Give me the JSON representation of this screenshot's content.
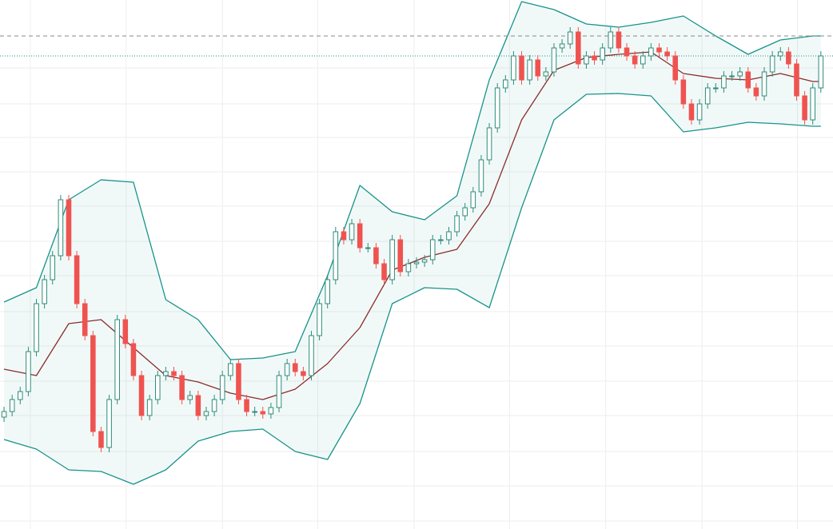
{
  "chart_data": {
    "type": "candlestick",
    "up_color": "#2e8b7a",
    "down_color": "#ef5350",
    "band_color": "#17938a",
    "middle_color": "#8b2c2c",
    "grid": true,
    "xlim": [
      -0.5,
      102.5
    ],
    "ylim": [
      0,
      662
    ],
    "xticks": [
      3.25,
      15.1,
      27,
      38.8,
      50.7,
      62.5,
      74.4,
      86.3,
      98.1
    ],
    "yticks": [
      10,
      54,
      97,
      142,
      185,
      229,
      272,
      317,
      360,
      404,
      447,
      490,
      532,
      577
    ],
    "open": [
      140,
      147,
      162,
      172,
      222,
      282,
      312,
      342,
      412,
      342,
      282,
      242,
      122,
      102,
      162,
      262,
      232,
      192,
      142,
      162,
      192,
      197,
      192,
      162,
      167,
      142,
      147,
      162,
      192,
      207,
      162,
      147,
      147,
      144,
      152,
      192,
      207,
      197,
      192,
      242,
      282,
      312,
      372,
      362,
      382,
      352,
      352,
      332,
      312,
      362,
      322,
      332,
      334,
      337,
      362,
      362,
      372,
      392,
      402,
      422,
      462,
      502,
      552,
      562,
      592,
      562,
      587,
      567,
      572,
      602,
      607,
      622,
      582,
      592,
      587,
      602,
      622,
      602,
      592,
      582,
      592,
      602,
      597,
      592,
      562,
      532,
      512,
      532,
      552,
      552,
      567,
      567,
      572,
      552,
      542,
      572,
      592,
      597,
      582,
      542,
      512,
      552
    ],
    "high": [
      153,
      168,
      178,
      228,
      288,
      318,
      348,
      418,
      418,
      348,
      288,
      248,
      128,
      168,
      268,
      268,
      238,
      198,
      168,
      198,
      203,
      203,
      198,
      173,
      173,
      153,
      168,
      198,
      213,
      213,
      168,
      153,
      153,
      158,
      198,
      213,
      213,
      203,
      248,
      288,
      318,
      378,
      378,
      388,
      388,
      358,
      358,
      338,
      368,
      368,
      338,
      340,
      343,
      368,
      368,
      378,
      398,
      408,
      428,
      468,
      508,
      558,
      568,
      598,
      598,
      593,
      593,
      578,
      608,
      613,
      628,
      628,
      598,
      598,
      608,
      628,
      628,
      608,
      598,
      598,
      608,
      608,
      603,
      598,
      568,
      538,
      538,
      558,
      558,
      573,
      573,
      578,
      578,
      558,
      578,
      598,
      603,
      603,
      588,
      548,
      558,
      598
    ],
    "low": [
      134,
      141,
      156,
      166,
      216,
      276,
      306,
      336,
      336,
      276,
      236,
      116,
      96,
      96,
      156,
      226,
      186,
      136,
      136,
      156,
      186,
      186,
      156,
      156,
      136,
      136,
      141,
      156,
      186,
      156,
      141,
      141,
      138,
      138,
      146,
      186,
      191,
      186,
      186,
      236,
      276,
      306,
      356,
      356,
      346,
      346,
      326,
      306,
      306,
      316,
      316,
      326,
      328,
      331,
      356,
      356,
      366,
      386,
      396,
      416,
      456,
      496,
      546,
      556,
      556,
      556,
      561,
      561,
      566,
      596,
      601,
      576,
      576,
      581,
      581,
      596,
      596,
      586,
      576,
      576,
      586,
      591,
      586,
      556,
      526,
      506,
      506,
      526,
      546,
      546,
      561,
      561,
      546,
      536,
      536,
      566,
      586,
      576,
      536,
      506,
      506,
      546
    ],
    "close": [
      147,
      162,
      172,
      222,
      282,
      312,
      342,
      412,
      342,
      282,
      242,
      122,
      102,
      162,
      262,
      232,
      192,
      142,
      162,
      192,
      197,
      192,
      162,
      167,
      142,
      147,
      162,
      192,
      207,
      162,
      147,
      147,
      144,
      152,
      192,
      207,
      197,
      192,
      242,
      282,
      312,
      372,
      362,
      382,
      352,
      352,
      332,
      312,
      362,
      322,
      332,
      334,
      337,
      362,
      362,
      372,
      392,
      402,
      422,
      462,
      502,
      552,
      562,
      592,
      562,
      587,
      567,
      572,
      602,
      607,
      622,
      582,
      592,
      587,
      602,
      622,
      602,
      592,
      582,
      592,
      602,
      597,
      592,
      562,
      532,
      512,
      532,
      552,
      552,
      567,
      567,
      572,
      552,
      542,
      572,
      592,
      597,
      582,
      542,
      512,
      552,
      592
    ],
    "bands": {
      "x": [
        0,
        4,
        8,
        12,
        16,
        20,
        24,
        28,
        32,
        36,
        40,
        44,
        48,
        52,
        56,
        60,
        64,
        68,
        72,
        76,
        80,
        84,
        88,
        92,
        96,
        100,
        101
      ],
      "upper": [
        284,
        302,
        412,
        437,
        434,
        287,
        262,
        212,
        214,
        222,
        317,
        430,
        397,
        387,
        417,
        562,
        660,
        650,
        632,
        628,
        634,
        642,
        617,
        594,
        612,
        617,
        617
      ],
      "middle": [
        200,
        192,
        257,
        262,
        227,
        192,
        184,
        170,
        162,
        175,
        207,
        252,
        324,
        340,
        350,
        407,
        512,
        574,
        590,
        594,
        597,
        570,
        564,
        562,
        570,
        560,
        560
      ],
      "lower": [
        112,
        100,
        74,
        72,
        56,
        74,
        110,
        122,
        125,
        97,
        87,
        157,
        282,
        302,
        300,
        277,
        402,
        512,
        544,
        545,
        542,
        497,
        502,
        509,
        507,
        504,
        504
      ]
    },
    "hlines": [
      {
        "value": 617,
        "color": "#888888",
        "style": "dashed"
      },
      {
        "value": 592,
        "color": "#17938a",
        "style": "dotted"
      }
    ]
  }
}
